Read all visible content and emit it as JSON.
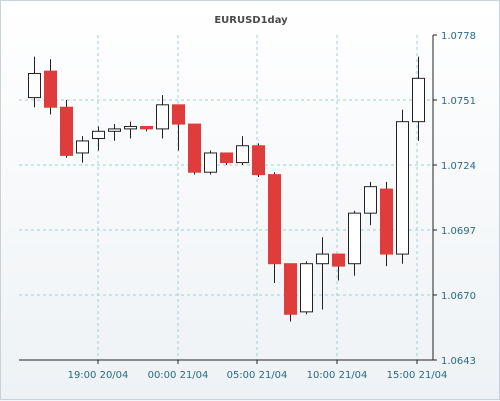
{
  "chart_data": {
    "type": "candlestick",
    "title": "EURUSD1day",
    "xlabel": "",
    "ylabel": "",
    "ylim": [
      1.0643,
      1.0778
    ],
    "y_ticks": [
      "1.0778",
      "1.0751",
      "1.0724",
      "1.0697",
      "1.0670",
      "1.0643"
    ],
    "x_ticks": [
      "19:00 20/04",
      "00:00 21/04",
      "05:00 21/04",
      "10:00 21/04",
      "15:00 21/04"
    ],
    "grid": true,
    "colors": {
      "up_fill": "#ffffff",
      "down_fill": "#e03c3c",
      "outline": "#222222",
      "grid": "#9fd0d6",
      "axis": "#222222",
      "text": "#2b6b86"
    },
    "candles": [
      {
        "open": 1.0752,
        "high": 1.0769,
        "low": 1.0748,
        "close": 1.0762
      },
      {
        "open": 1.0763,
        "high": 1.0768,
        "low": 1.0745,
        "close": 1.0748
      },
      {
        "open": 1.0748,
        "high": 1.0751,
        "low": 1.0727,
        "close": 1.0728
      },
      {
        "open": 1.0729,
        "high": 1.0736,
        "low": 1.0725,
        "close": 1.0734
      },
      {
        "open": 1.0735,
        "high": 1.074,
        "low": 1.073,
        "close": 1.0738
      },
      {
        "open": 1.0738,
        "high": 1.0741,
        "low": 1.0734,
        "close": 1.0739
      },
      {
        "open": 1.0739,
        "high": 1.0742,
        "low": 1.0735,
        "close": 1.074
      },
      {
        "open": 1.074,
        "high": 1.0739,
        "low": 1.0738,
        "close": 1.0739
      },
      {
        "open": 1.0739,
        "high": 1.0753,
        "low": 1.0735,
        "close": 1.0749
      },
      {
        "open": 1.0749,
        "high": 1.0748,
        "low": 1.073,
        "close": 1.0741
      },
      {
        "open": 1.0741,
        "high": 1.0741,
        "low": 1.072,
        "close": 1.0721
      },
      {
        "open": 1.0721,
        "high": 1.073,
        "low": 1.072,
        "close": 1.0729
      },
      {
        "open": 1.0729,
        "high": 1.0729,
        "low": 1.0724,
        "close": 1.0725
      },
      {
        "open": 1.0725,
        "high": 1.0736,
        "low": 1.0724,
        "close": 1.0732
      },
      {
        "open": 1.0732,
        "high": 1.0733,
        "low": 1.0719,
        "close": 1.072
      },
      {
        "open": 1.072,
        "high": 1.0721,
        "low": 1.0675,
        "close": 1.0683
      },
      {
        "open": 1.0683,
        "high": 1.0683,
        "low": 1.0659,
        "close": 1.0662
      },
      {
        "open": 1.0663,
        "high": 1.0684,
        "low": 1.0662,
        "close": 1.0683
      },
      {
        "open": 1.0683,
        "high": 1.0694,
        "low": 1.0664,
        "close": 1.0687
      },
      {
        "open": 1.0687,
        "high": 1.0687,
        "low": 1.0676,
        "close": 1.0682
      },
      {
        "open": 1.0683,
        "high": 1.0705,
        "low": 1.0678,
        "close": 1.0704
      },
      {
        "open": 1.0704,
        "high": 1.0717,
        "low": 1.0699,
        "close": 1.0715
      },
      {
        "open": 1.0714,
        "high": 1.0717,
        "low": 1.0682,
        "close": 1.0687
      },
      {
        "open": 1.0687,
        "high": 1.0747,
        "low": 1.0683,
        "close": 1.0742
      },
      {
        "open": 1.0742,
        "high": 1.0769,
        "low": 1.0734,
        "close": 1.076
      }
    ]
  }
}
